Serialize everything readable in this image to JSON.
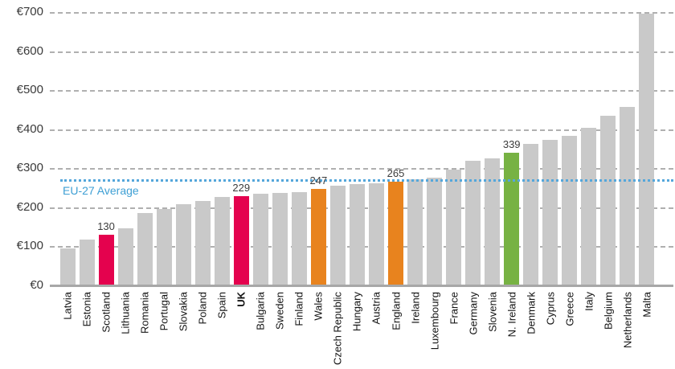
{
  "chart_data": {
    "type": "bar",
    "title": "",
    "xlabel": "",
    "ylabel": "",
    "currency_prefix": "€",
    "grid": true,
    "y_axis": {
      "min": 0,
      "max": 700,
      "step": 100,
      "tick_labels": [
        "€0",
        "€100",
        "€200",
        "€300",
        "€400",
        "€500",
        "€600",
        "€700"
      ]
    },
    "average_line": {
      "label": "EU-27 Average",
      "value": 269,
      "style": "dotted",
      "color": "#55a7db"
    },
    "colors": {
      "default": "#c9c9c9",
      "crimson": "#e4024e",
      "orange": "#e8831e",
      "green": "#77b243"
    },
    "bars": [
      {
        "label": "Latvia",
        "value": 95
      },
      {
        "label": "Estonia",
        "value": 118
      },
      {
        "label": "Scotland",
        "value": 130,
        "color": "crimson",
        "show_value": true
      },
      {
        "label": "Lithuania",
        "value": 146
      },
      {
        "label": "Romania",
        "value": 185
      },
      {
        "label": "Portugal",
        "value": 195
      },
      {
        "label": "Slovakia",
        "value": 207
      },
      {
        "label": "Poland",
        "value": 216
      },
      {
        "label": "Spain",
        "value": 227
      },
      {
        "label": "UK",
        "value": 229,
        "color": "crimson",
        "show_value": true,
        "bold_label": true
      },
      {
        "label": "Bulgaria",
        "value": 234
      },
      {
        "label": "Sweden",
        "value": 236
      },
      {
        "label": "Finland",
        "value": 238
      },
      {
        "label": "Wales",
        "value": 247,
        "color": "orange",
        "show_value": true
      },
      {
        "label": "Czech Republic",
        "value": 256
      },
      {
        "label": "Hungary",
        "value": 260
      },
      {
        "label": "Austria",
        "value": 262
      },
      {
        "label": "England",
        "value": 265,
        "color": "orange",
        "show_value": true
      },
      {
        "label": "Ireland",
        "value": 271
      },
      {
        "label": "Luxembourg",
        "value": 276
      },
      {
        "label": "France",
        "value": 297
      },
      {
        "label": "Germany",
        "value": 320
      },
      {
        "label": "Slovenia",
        "value": 325
      },
      {
        "label": "N. Ireland",
        "value": 339,
        "color": "green",
        "show_value": true
      },
      {
        "label": "Denmark",
        "value": 363
      },
      {
        "label": "Cyprus",
        "value": 372
      },
      {
        "label": "Greece",
        "value": 383
      },
      {
        "label": "Italy",
        "value": 403
      },
      {
        "label": "Belgium",
        "value": 435
      },
      {
        "label": "Netherlands",
        "value": 458
      },
      {
        "label": "Malta",
        "value": 695
      }
    ]
  }
}
